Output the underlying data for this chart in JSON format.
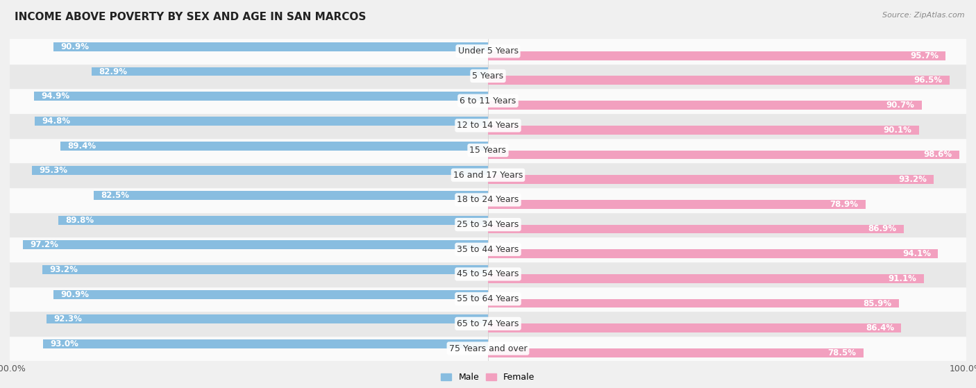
{
  "title": "INCOME ABOVE POVERTY BY SEX AND AGE IN SAN MARCOS",
  "source": "Source: ZipAtlas.com",
  "categories": [
    "Under 5 Years",
    "5 Years",
    "6 to 11 Years",
    "12 to 14 Years",
    "15 Years",
    "16 and 17 Years",
    "18 to 24 Years",
    "25 to 34 Years",
    "35 to 44 Years",
    "45 to 54 Years",
    "55 to 64 Years",
    "65 to 74 Years",
    "75 Years and over"
  ],
  "male_values": [
    90.9,
    82.9,
    94.9,
    94.8,
    89.4,
    95.3,
    82.5,
    89.8,
    97.2,
    93.2,
    90.9,
    92.3,
    93.0
  ],
  "female_values": [
    95.7,
    96.5,
    90.7,
    90.1,
    98.6,
    93.2,
    78.9,
    86.9,
    94.1,
    91.1,
    85.9,
    86.4,
    78.5
  ],
  "male_color": "#88bde0",
  "female_color": "#f2a0bf",
  "bar_height": 0.36,
  "background_color": "#f0f0f0",
  "row_bg_even": "#e8e8e8",
  "row_bg_odd": "#fafafa",
  "title_fontsize": 11,
  "value_fontsize": 8.5,
  "label_fontsize": 9,
  "legend_fontsize": 9,
  "source_fontsize": 8
}
